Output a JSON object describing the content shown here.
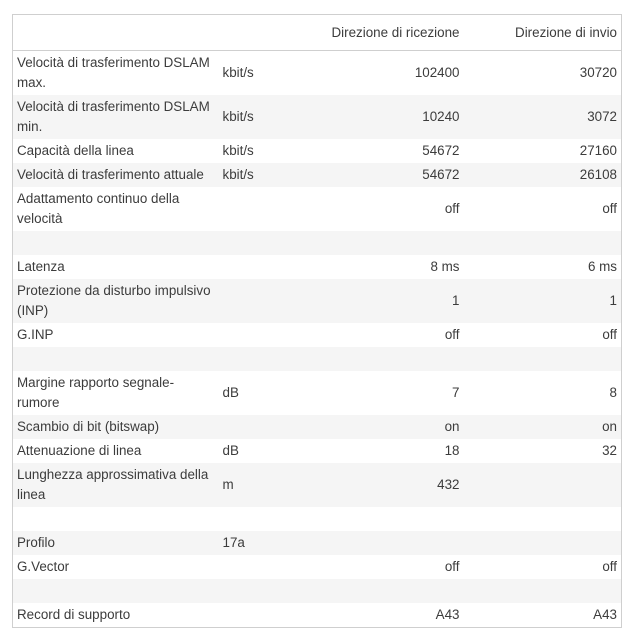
{
  "header": {
    "label": "",
    "unit": "",
    "rx": "Direzione di ricezione",
    "tx": "Direzione di invio"
  },
  "rows": [
    {
      "label": "Velocità di trasferimento DSLAM max.",
      "unit": "kbit/s",
      "rx": "102400",
      "tx": "30720"
    },
    {
      "label": "Velocità di trasferimento DSLAM min.",
      "unit": "kbit/s",
      "rx": "10240",
      "tx": "3072"
    },
    {
      "label": "Capacità della linea",
      "unit": "kbit/s",
      "rx": "54672",
      "tx": "27160"
    },
    {
      "label": "Velocità di trasferimento attuale",
      "unit": "kbit/s",
      "rx": "54672",
      "tx": "26108"
    },
    {
      "label": "Adattamento continuo della velocità",
      "unit": "",
      "rx": "off",
      "tx": "off"
    },
    {
      "label": "",
      "unit": "",
      "rx": "",
      "tx": ""
    },
    {
      "label": "Latenza",
      "unit": "",
      "rx": "8 ms",
      "tx": "6 ms"
    },
    {
      "label": "Protezione da disturbo impulsivo (INP)",
      "unit": "",
      "rx": "1",
      "tx": "1"
    },
    {
      "label": "G.INP",
      "unit": "",
      "rx": "off",
      "tx": "off"
    },
    {
      "label": "",
      "unit": "",
      "rx": "",
      "tx": ""
    },
    {
      "label": "Margine rapporto segnale-rumore",
      "unit": "dB",
      "rx": "7",
      "tx": "8"
    },
    {
      "label": "Scambio di bit (bitswap)",
      "unit": "",
      "rx": "on",
      "tx": "on"
    },
    {
      "label": "Attenuazione di linea",
      "unit": "dB",
      "rx": "18",
      "tx": "32"
    },
    {
      "label": "Lunghezza approssimativa della linea",
      "unit": "m",
      "rx": "432",
      "tx": ""
    },
    {
      "label": "",
      "unit": "",
      "rx": "",
      "tx": ""
    },
    {
      "label": "Profilo",
      "unit": "17a",
      "rx": "",
      "tx": ""
    },
    {
      "label": "G.Vector",
      "unit": "",
      "rx": "off",
      "tx": "off"
    },
    {
      "label": "",
      "unit": "",
      "rx": "",
      "tx": ""
    },
    {
      "label": "Record di supporto",
      "unit": "",
      "rx": "A43",
      "tx": "A43"
    }
  ]
}
